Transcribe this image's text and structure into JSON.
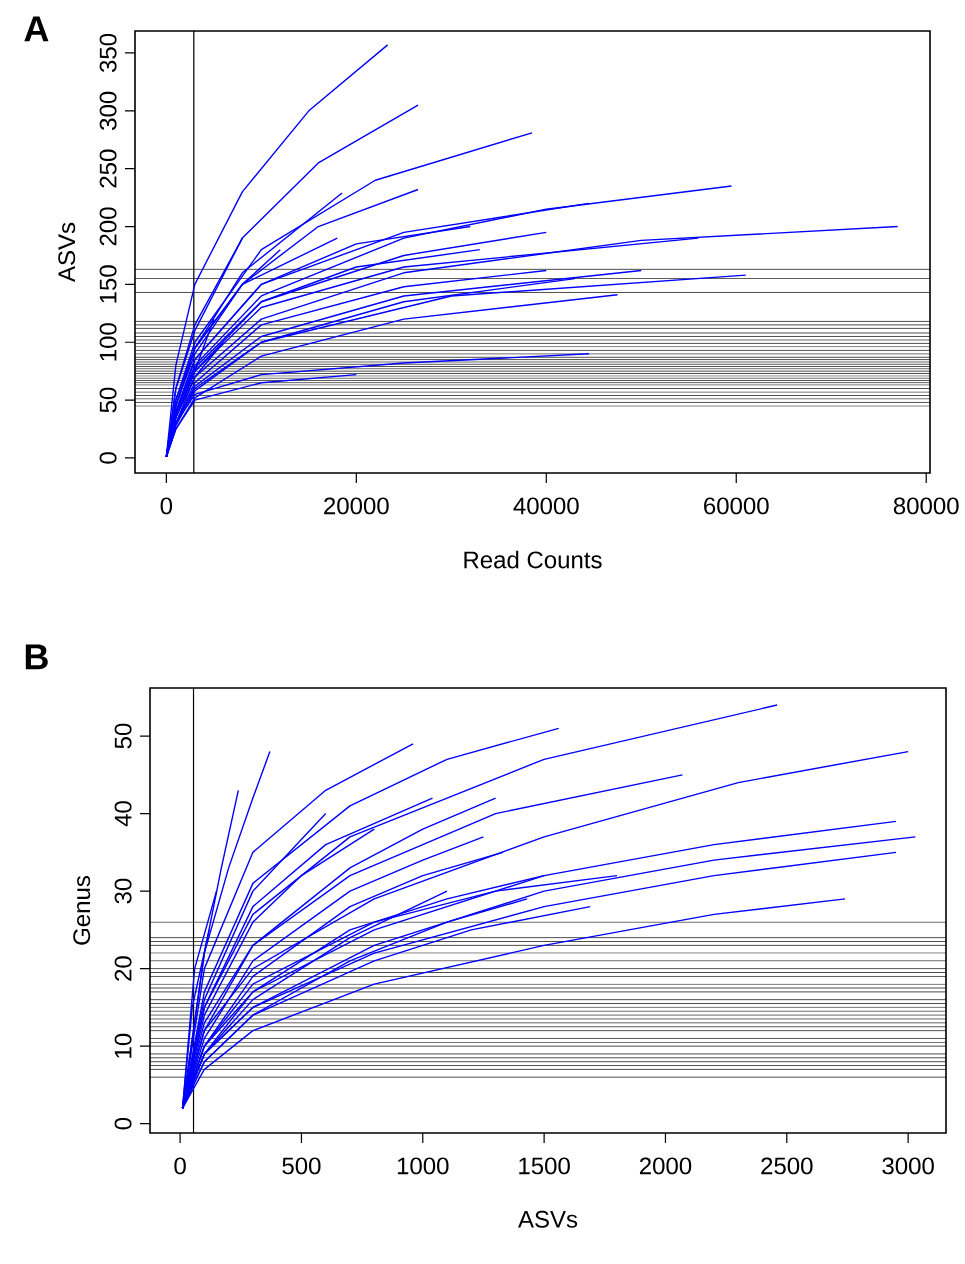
{
  "chart_data": [
    {
      "type": "line",
      "title": "A",
      "xlabel": "Read Counts",
      "ylabel": "ASVs",
      "xlim": [
        -3300,
        80400
      ],
      "ylim": [
        -13,
        369
      ],
      "xticks": [
        0,
        20000,
        40000,
        60000,
        80000
      ],
      "yticks": [
        0,
        50,
        100,
        150,
        200,
        250,
        300,
        350
      ],
      "ref_lines": [
        {
          "axis": "x",
          "value": 2900
        },
        {
          "axis": "y",
          "value": 163
        },
        {
          "axis": "y",
          "value": 155
        },
        {
          "axis": "y",
          "value": 143
        },
        {
          "axis": "y",
          "value": 118
        },
        {
          "axis": "y",
          "value": 115
        },
        {
          "axis": "y",
          "value": 112
        },
        {
          "axis": "y",
          "value": 108
        },
        {
          "axis": "y",
          "value": 105
        },
        {
          "axis": "y",
          "value": 102
        },
        {
          "axis": "y",
          "value": 99
        },
        {
          "axis": "y",
          "value": 96
        },
        {
          "axis": "y",
          "value": 93
        },
        {
          "axis": "y",
          "value": 90
        },
        {
          "axis": "y",
          "value": 87
        },
        {
          "axis": "y",
          "value": 85
        },
        {
          "axis": "y",
          "value": 83
        },
        {
          "axis": "y",
          "value": 81
        },
        {
          "axis": "y",
          "value": 79
        },
        {
          "axis": "y",
          "value": 77
        },
        {
          "axis": "y",
          "value": 75
        },
        {
          "axis": "y",
          "value": 73
        },
        {
          "axis": "y",
          "value": 71
        },
        {
          "axis": "y",
          "value": 69
        },
        {
          "axis": "y",
          "value": 67
        },
        {
          "axis": "y",
          "value": 65
        },
        {
          "axis": "y",
          "value": 63
        },
        {
          "axis": "y",
          "value": 60
        },
        {
          "axis": "y",
          "value": 57
        },
        {
          "axis": "y",
          "value": 54
        },
        {
          "axis": "y",
          "value": 51
        },
        {
          "axis": "y",
          "value": 48
        },
        {
          "axis": "y",
          "value": 45
        }
      ],
      "series": [
        {
          "color": "#0000ff",
          "x": [
            0,
            1000,
            3000,
            8000,
            15000,
            23300
          ],
          "values": [
            1,
            80,
            150,
            230,
            300,
            357
          ]
        },
        {
          "color": "#0000ff",
          "x": [
            0,
            1000,
            3000,
            8000,
            16000,
            26500
          ],
          "values": [
            1,
            60,
            115,
            190,
            255,
            305
          ]
        },
        {
          "color": "#0000ff",
          "x": [
            0,
            1000,
            3000,
            10000,
            22000,
            38500
          ],
          "values": [
            1,
            50,
            100,
            180,
            240,
            281
          ]
        },
        {
          "color": "#0000ff",
          "x": [
            0,
            1000,
            3000,
            8000,
            16000,
            26500
          ],
          "values": [
            1,
            45,
            90,
            150,
            200,
            232
          ]
        },
        {
          "color": "#0000ff",
          "x": [
            0,
            1000,
            3000,
            8000,
            18500
          ],
          "values": [
            1,
            50,
            95,
            160,
            229
          ]
        },
        {
          "color": "#0000ff",
          "x": [
            0,
            1000,
            3000,
            10000,
            25000,
            40000,
            59500
          ],
          "values": [
            1,
            40,
            80,
            140,
            190,
            215,
            235
          ]
        },
        {
          "color": "#0000ff",
          "x": [
            0,
            1000,
            3000,
            10000,
            25000,
            50000,
            77000
          ],
          "values": [
            1,
            35,
            70,
            120,
            160,
            188,
            200
          ]
        },
        {
          "color": "#0000ff",
          "x": [
            0,
            1000,
            3000,
            10000,
            25000,
            44500
          ],
          "values": [
            1,
            40,
            85,
            150,
            195,
            220
          ]
        },
        {
          "color": "#0000ff",
          "x": [
            0,
            1000,
            3000,
            10000,
            25000,
            56000
          ],
          "values": [
            1,
            35,
            75,
            130,
            165,
            190
          ]
        },
        {
          "color": "#0000ff",
          "x": [
            0,
            1000,
            3000,
            10000,
            25000,
            40000
          ],
          "values": [
            1,
            35,
            75,
            135,
            175,
            195
          ]
        },
        {
          "color": "#0000ff",
          "x": [
            0,
            1000,
            3000,
            10000,
            25000,
            50000
          ],
          "values": [
            1,
            30,
            62,
            105,
            140,
            162
          ]
        },
        {
          "color": "#0000ff",
          "x": [
            0,
            1000,
            3000,
            10000,
            30000,
            61000
          ],
          "values": [
            1,
            30,
            60,
            100,
            140,
            158
          ]
        },
        {
          "color": "#0000ff",
          "x": [
            0,
            1000,
            3000,
            10000,
            25000,
            47500
          ],
          "values": [
            1,
            25,
            52,
            88,
            120,
            141
          ]
        },
        {
          "color": "#0000ff",
          "x": [
            0,
            1000,
            3000,
            10000,
            25000,
            44500
          ],
          "values": [
            1,
            30,
            55,
            72,
            82,
            90
          ]
        },
        {
          "color": "#0000ff",
          "x": [
            0,
            1000,
            3000,
            8000
          ],
          "values": [
            1,
            60,
            110,
            190
          ]
        },
        {
          "color": "#0000ff",
          "x": [
            0,
            1000,
            3000,
            10000,
            20000,
            32000
          ],
          "values": [
            1,
            40,
            85,
            150,
            185,
            200
          ]
        },
        {
          "color": "#0000ff",
          "x": [
            0,
            1000,
            3000,
            10000,
            20000,
            33000
          ],
          "values": [
            1,
            38,
            78,
            135,
            165,
            180
          ]
        },
        {
          "color": "#0000ff",
          "x": [
            0,
            1000,
            3000,
            10000,
            25000,
            40000
          ],
          "values": [
            1,
            30,
            65,
            115,
            148,
            162
          ]
        },
        {
          "color": "#0000ff",
          "x": [
            0,
            1000,
            3000,
            10000,
            25000,
            43000
          ],
          "values": [
            1,
            28,
            58,
            100,
            135,
            155
          ]
        },
        {
          "color": "#0000ff",
          "x": [
            0,
            1000,
            3000,
            8000,
            18000
          ],
          "values": [
            1,
            45,
            95,
            150,
            190
          ]
        },
        {
          "color": "#0000ff",
          "x": [
            0,
            1000,
            3000,
            8000,
            12000
          ],
          "values": [
            1,
            45,
            95,
            150,
            180
          ]
        },
        {
          "color": "#0000ff",
          "x": [
            0,
            1000,
            3000,
            5000
          ],
          "values": [
            1,
            35,
            75,
            120
          ]
        },
        {
          "color": "#0000ff",
          "x": [
            0,
            1000,
            3000,
            6000
          ],
          "values": [
            1,
            30,
            70,
            100
          ]
        },
        {
          "color": "#0000ff",
          "x": [
            0,
            1000,
            3000,
            10000,
            20000
          ],
          "values": [
            1,
            25,
            50,
            65,
            72
          ]
        }
      ]
    },
    {
      "type": "line",
      "title": "B",
      "xlabel": "ASVs",
      "ylabel": "Genus",
      "xlim": [
        -124,
        3156
      ],
      "ylim": [
        -1.2,
        56.2
      ],
      "xticks": [
        0,
        500,
        1000,
        1500,
        2000,
        2500,
        3000
      ],
      "yticks": [
        0,
        10,
        20,
        30,
        40,
        50
      ],
      "ref_lines": [
        {
          "axis": "x",
          "value": 55
        },
        {
          "axis": "y",
          "value": 26
        },
        {
          "axis": "y",
          "value": 24
        },
        {
          "axis": "y",
          "value": 23.5
        },
        {
          "axis": "y",
          "value": 23
        },
        {
          "axis": "y",
          "value": 22
        },
        {
          "axis": "y",
          "value": 21
        },
        {
          "axis": "y",
          "value": 20
        },
        {
          "axis": "y",
          "value": 19.5
        },
        {
          "axis": "y",
          "value": 19
        },
        {
          "axis": "y",
          "value": 18
        },
        {
          "axis": "y",
          "value": 17.5
        },
        {
          "axis": "y",
          "value": 17
        },
        {
          "axis": "y",
          "value": 16
        },
        {
          "axis": "y",
          "value": 15.5
        },
        {
          "axis": "y",
          "value": 15
        },
        {
          "axis": "y",
          "value": 14.5
        },
        {
          "axis": "y",
          "value": 14
        },
        {
          "axis": "y",
          "value": 13.5
        },
        {
          "axis": "y",
          "value": 13
        },
        {
          "axis": "y",
          "value": 12.5
        },
        {
          "axis": "y",
          "value": 12
        },
        {
          "axis": "y",
          "value": 11
        },
        {
          "axis": "y",
          "value": 10.5
        },
        {
          "axis": "y",
          "value": 10
        },
        {
          "axis": "y",
          "value": 9
        },
        {
          "axis": "y",
          "value": 8.5
        },
        {
          "axis": "y",
          "value": 8
        },
        {
          "axis": "y",
          "value": 7.5
        },
        {
          "axis": "y",
          "value": 7
        },
        {
          "axis": "y",
          "value": 6
        }
      ],
      "series": [
        {
          "color": "#0000ff",
          "x": [
            10,
            100,
            300,
            700,
            1500,
            2460
          ],
          "values": [
            2,
            15,
            27,
            37,
            47,
            54
          ]
        },
        {
          "color": "#0000ff",
          "x": [
            10,
            100,
            300,
            800,
            1500,
            2300,
            3000
          ],
          "values": [
            2,
            12,
            20,
            29,
            37,
            44,
            48
          ]
        },
        {
          "color": "#0000ff",
          "x": [
            10,
            100,
            300,
            700,
            1300,
            2070
          ],
          "values": [
            2,
            13,
            23,
            32,
            40,
            45
          ]
        },
        {
          "color": "#0000ff",
          "x": [
            10,
            100,
            300,
            700,
            1100,
            1560
          ],
          "values": [
            2,
            17,
            31,
            41,
            47,
            51
          ]
        },
        {
          "color": "#0000ff",
          "x": [
            10,
            100,
            300,
            600,
            960
          ],
          "values": [
            2,
            20,
            35,
            43,
            49
          ]
        },
        {
          "color": "#0000ff",
          "x": [
            10,
            100,
            200,
            300,
            370
          ],
          "values": [
            2,
            22,
            33,
            42,
            48
          ]
        },
        {
          "color": "#0000ff",
          "x": [
            10,
            100,
            170,
            240
          ],
          "values": [
            2,
            22,
            33,
            43
          ]
        },
        {
          "color": "#0000ff",
          "x": [
            10,
            100,
            300,
            800,
            1500,
            2200,
            2950
          ],
          "values": [
            2,
            10,
            17,
            25,
            32,
            36,
            39
          ]
        },
        {
          "color": "#0000ff",
          "x": [
            10,
            100,
            300,
            800,
            1500,
            2200,
            3030
          ],
          "values": [
            2,
            9,
            15,
            23,
            30,
            34,
            37
          ]
        },
        {
          "color": "#0000ff",
          "x": [
            10,
            100,
            300,
            800,
            1500,
            2200,
            2950
          ],
          "values": [
            2,
            9,
            15,
            22,
            28,
            32,
            35
          ]
        },
        {
          "color": "#0000ff",
          "x": [
            10,
            100,
            300,
            800,
            1500,
            2200,
            2740
          ],
          "values": [
            2,
            7,
            12,
            18,
            23,
            27,
            29
          ]
        },
        {
          "color": "#0000ff",
          "x": [
            10,
            100,
            300,
            800,
            1200,
            1690
          ],
          "values": [
            2,
            8,
            14,
            21,
            25,
            28
          ]
        },
        {
          "color": "#0000ff",
          "x": [
            10,
            100,
            300,
            700,
            1000,
            1330
          ],
          "values": [
            2,
            10,
            19,
            28,
            32,
            35
          ]
        },
        {
          "color": "#0000ff",
          "x": [
            10,
            100,
            300,
            700,
            1100,
            1500
          ],
          "values": [
            2,
            9,
            17,
            25,
            29,
            32
          ]
        },
        {
          "color": "#0000ff",
          "x": [
            10,
            100,
            300,
            800,
            1300,
            1800
          ],
          "values": [
            2,
            10,
            18,
            26,
            30,
            32
          ]
        },
        {
          "color": "#0000ff",
          "x": [
            10,
            100,
            300,
            600,
            1040
          ],
          "values": [
            2,
            15,
            28,
            36,
            42
          ]
        },
        {
          "color": "#0000ff",
          "x": [
            10,
            100,
            300,
            700,
            1000,
            1300
          ],
          "values": [
            2,
            12,
            23,
            33,
            38,
            42
          ]
        },
        {
          "color": "#0000ff",
          "x": [
            10,
            100,
            300,
            700,
            1000,
            1250
          ],
          "values": [
            2,
            11,
            21,
            30,
            34,
            37
          ]
        },
        {
          "color": "#0000ff",
          "x": [
            10,
            100,
            300,
            700,
            1100,
            1430
          ],
          "values": [
            2,
            8,
            14,
            21,
            26,
            29
          ]
        },
        {
          "color": "#0000ff",
          "x": [
            10,
            100,
            300,
            700,
            1100
          ],
          "values": [
            2,
            9,
            16,
            24,
            30
          ]
        },
        {
          "color": "#0000ff",
          "x": [
            10,
            100,
            300,
            500,
            800
          ],
          "values": [
            2,
            14,
            26,
            32,
            38
          ]
        },
        {
          "color": "#0000ff",
          "x": [
            10,
            100,
            300,
            600
          ],
          "values": [
            2,
            16,
            30,
            40
          ]
        },
        {
          "color": "#0000ff",
          "x": [
            10,
            60,
            150
          ],
          "values": [
            2,
            20,
            30
          ]
        },
        {
          "color": "#0000ff",
          "x": [
            10,
            50,
            120
          ],
          "values": [
            2,
            15,
            25
          ]
        }
      ]
    }
  ]
}
